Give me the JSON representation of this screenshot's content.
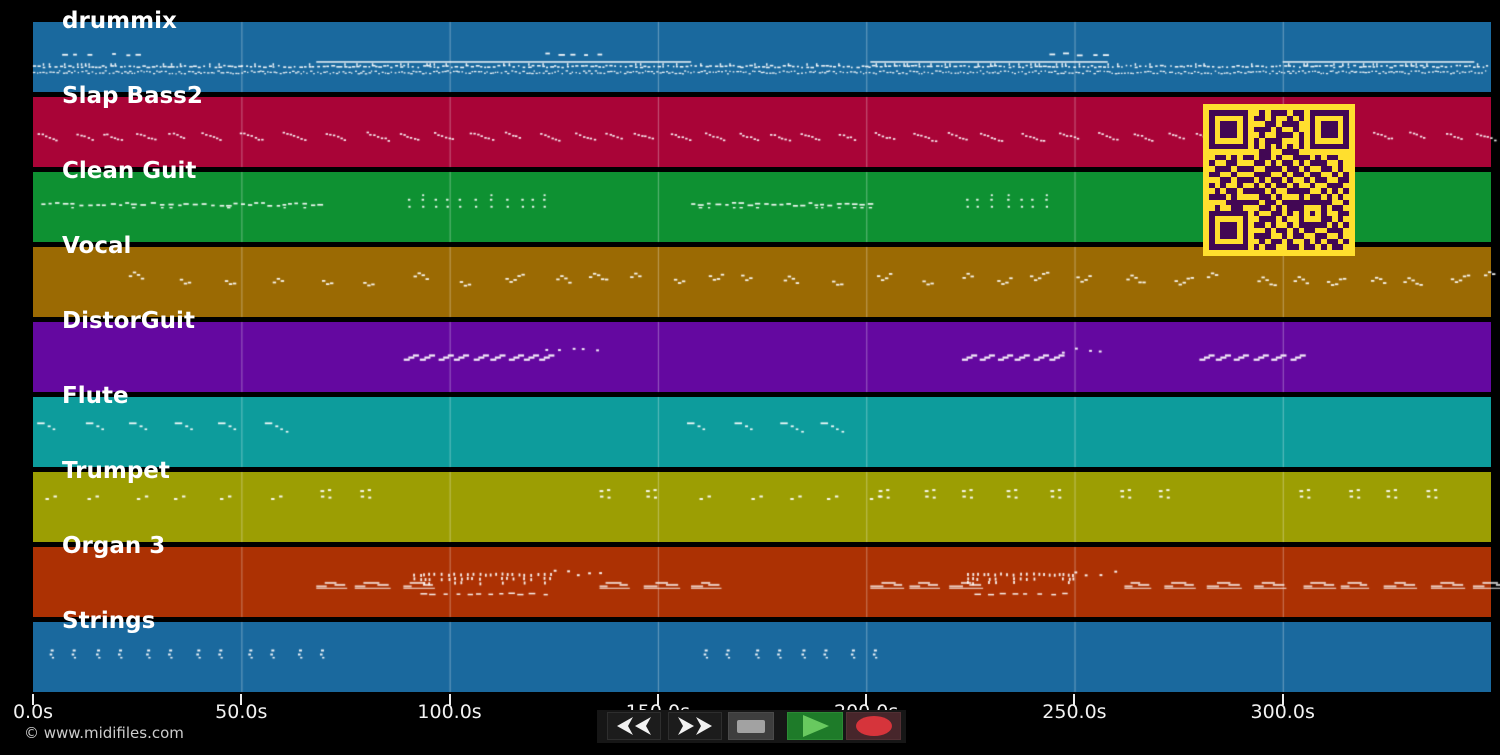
{
  "app": {
    "watermark": "© www.midifiles.com"
  },
  "chart": {
    "type": "midi-track-timeline",
    "time_axis": {
      "unit": "s",
      "t_max": 350,
      "ticks": [
        {
          "t": 0,
          "label": "0.0s"
        },
        {
          "t": 50,
          "label": "50.0s"
        },
        {
          "t": 100,
          "label": "100.0s"
        },
        {
          "t": 150,
          "label": "150.0s"
        },
        {
          "t": 200,
          "label": "200.0s"
        },
        {
          "t": 250,
          "label": "250.0s"
        },
        {
          "t": 300,
          "label": "300.0s"
        }
      ]
    },
    "grid_color": "rgba(255,255,255,0.30)",
    "note_color": "rgba(255,255,255,0.93)",
    "tracks": [
      {
        "label": "drummix",
        "color": "#1a699e",
        "segments": [
          {
            "type": "dashes",
            "y": 0.45,
            "t": [
              7,
              14
            ]
          },
          {
            "type": "dashes",
            "y": 0.45,
            "t": [
              19,
              25
            ]
          },
          {
            "type": "dashes",
            "y": 0.45,
            "t": [
              123,
              136
            ]
          },
          {
            "type": "dashes",
            "y": 0.45,
            "t": [
              244,
              258
            ]
          },
          {
            "type": "hatline",
            "y": 0.56,
            "t": [
              68,
              158
            ]
          },
          {
            "type": "hatline",
            "y": 0.56,
            "t": [
              201,
              258
            ]
          },
          {
            "type": "hatline",
            "y": 0.56,
            "t": [
              300,
              346
            ]
          },
          {
            "type": "tickrow",
            "y": 0.625,
            "t": [
              0,
              349
            ]
          },
          {
            "type": "speckrow",
            "y": 0.71,
            "t": [
              0,
              349
            ]
          }
        ]
      },
      {
        "label": "Slap Bass2",
        "color": "#a90437",
        "segments": [
          {
            "type": "bassriff",
            "y": 0.55,
            "t": [
              1,
              349
            ]
          }
        ]
      },
      {
        "label": "Clean Guit",
        "color": "#0e9132",
        "segments": [
          {
            "type": "strum",
            "y": 0.45,
            "t": [
              2,
              69
            ]
          },
          {
            "type": "stabs",
            "y": 0.44,
            "t": [
              90,
              123
            ]
          },
          {
            "type": "strum",
            "y": 0.45,
            "t": [
              158,
              201
            ]
          },
          {
            "type": "stabs",
            "y": 0.44,
            "t": [
              224,
              245
            ]
          }
        ]
      },
      {
        "label": "Vocal",
        "color": "#9b6a03",
        "segments": [
          {
            "type": "squiggle",
            "y": 0.45,
            "t": [
              23,
              349
            ]
          }
        ]
      },
      {
        "label": "DistorGuit",
        "color": "#6408a0",
        "segments": [
          {
            "type": "riff",
            "y": 0.48,
            "t": [
              89,
              123
            ]
          },
          {
            "type": "sparsedots",
            "y": 0.4,
            "t": [
              123,
              136
            ]
          },
          {
            "type": "riff",
            "y": 0.48,
            "t": [
              223,
              247
            ]
          },
          {
            "type": "sparsedots",
            "y": 0.4,
            "t": [
              247,
              258
            ]
          },
          {
            "type": "riff",
            "y": 0.48,
            "t": [
              280,
              302
            ]
          }
        ]
      },
      {
        "label": "Flute",
        "color": "#0d9c9c",
        "segments": [
          {
            "type": "flutemotif",
            "y": 0.42,
            "t": [
              1,
              65
            ]
          },
          {
            "type": "flutemotif",
            "y": 0.42,
            "t": [
              157,
              198
            ]
          }
        ]
      },
      {
        "label": "Trumpet",
        "color": "#9c9e03",
        "segments": [
          {
            "type": "trumpetpairs",
            "y": 0.35,
            "t": [
              3,
              64
            ]
          },
          {
            "type": "trumpetcols",
            "y": 0.33,
            "t": [
              69,
              90
            ]
          },
          {
            "type": "trumpetcols",
            "y": 0.33,
            "t": [
              136,
              155
            ]
          },
          {
            "type": "trumpetpairs",
            "y": 0.35,
            "t": [
              160,
              201
            ]
          },
          {
            "type": "trumpetcols",
            "y": 0.33,
            "t": [
              203,
              246
            ]
          },
          {
            "type": "trumpetcols",
            "y": 0.33,
            "t": [
              261,
              278
            ]
          },
          {
            "type": "trumpetcols",
            "y": 0.33,
            "t": [
              304,
              340
            ]
          }
        ]
      },
      {
        "label": "Organ 3",
        "color": "#ac3103",
        "segments": [
          {
            "type": "plateaus",
            "y": 0.52,
            "t": [
              68,
              91
            ]
          },
          {
            "type": "organstabs",
            "y": 0.45,
            "t": [
              91,
              125
            ]
          },
          {
            "type": "sparsedots",
            "y": 0.36,
            "t": [
              125,
              136
            ]
          },
          {
            "type": "plateaus",
            "y": 0.52,
            "t": [
              136,
              158
            ]
          },
          {
            "type": "plateaus",
            "y": 0.52,
            "t": [
              201,
              224
            ]
          },
          {
            "type": "organstabs",
            "y": 0.45,
            "t": [
              224,
              250
            ]
          },
          {
            "type": "sparsedots",
            "y": 0.36,
            "t": [
              250,
              261
            ]
          },
          {
            "type": "plateaus",
            "y": 0.52,
            "t": [
              262,
              302
            ]
          },
          {
            "type": "plateaus",
            "y": 0.52,
            "t": [
              305,
              349
            ]
          },
          {
            "type": "subrow",
            "y": 0.66,
            "t": [
              93,
              125
            ]
          },
          {
            "type": "subrow",
            "y": 0.66,
            "t": [
              226,
              250
            ]
          }
        ]
      },
      {
        "label": "Strings",
        "color": "#1a699e",
        "segments": [
          {
            "type": "pizzpairs",
            "y": 0.45,
            "t": [
              4,
              66
            ]
          },
          {
            "type": "pizzpairs",
            "y": 0.45,
            "t": [
              161,
              198
            ]
          }
        ]
      }
    ]
  },
  "transport": {
    "buttons": [
      {
        "name": "rewind",
        "icon": "rewind-icon"
      },
      {
        "name": "fast-forward",
        "icon": "fast-forward-icon"
      },
      {
        "name": "stop",
        "icon": "stop-icon"
      },
      {
        "name": "play",
        "icon": "play-icon"
      },
      {
        "name": "record",
        "icon": "record-icon"
      }
    ],
    "colors": {
      "bar_bg": "#161616",
      "dark_button_bg": "#1c1c1c",
      "stop_bg": "#3e3e3e",
      "stop_glyph": "#a2a2a2",
      "play_bg": "#1e7b29",
      "play_glyph": "#68c95f",
      "record_bg": "#47262b",
      "record_glyph": "#d6343b",
      "arrow_glyph": "#f2f2f2"
    }
  },
  "qr": {
    "bg": "#ffdf2e",
    "fg": "#420754",
    "matrix": [
      "1111111001011101101111111",
      "1000001011010010101000001",
      "1011101000110111001011101",
      "1011101011101001001011101",
      "1011101001001110101011101",
      "1000001010111000101000001",
      "1111111010101010101111111",
      "0000000001100111000000000",
      "0110101101101001110101100",
      "1001100011010110101110010",
      "0111011100111011010011010",
      "1100100011100101101100101",
      "0011011101011010010110011",
      "1010010010101101001001110",
      "0101101111010011110010101",
      "1110100001101000101101010",
      "0001111110110111111111001",
      "0100110001101011100010110",
      "1111111010011010101010011",
      "1000001001110100100011010",
      "1011101011010010111110101",
      "1011101000101101011001110",
      "1011101011100101100110010",
      "1000001001011010010101101",
      "1111111010110011011010110"
    ]
  }
}
